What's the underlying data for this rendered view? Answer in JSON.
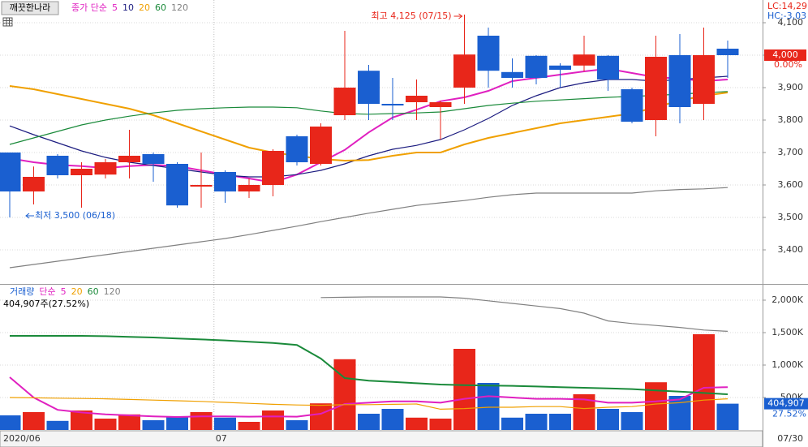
{
  "chart_data": [
    {
      "type": "candlestick",
      "title": "깨끗한나라",
      "ma_label": "종가 단순",
      "open": [
        3700,
        3580,
        3690,
        3630,
        3632,
        3670,
        3695,
        3665,
        3595,
        3640,
        3580,
        3600,
        3750,
        3665,
        3815,
        3952,
        3850,
        3855,
        3840,
        3900,
        4060,
        3948,
        3998,
        3968,
        3968,
        3998,
        3895,
        3800,
        4000,
        3850,
        4020
      ],
      "high": [
        3700,
        3657,
        3695,
        3670,
        3680,
        3770,
        3700,
        3670,
        3700,
        3645,
        3620,
        3710,
        3755,
        3790,
        4075,
        3970,
        3930,
        3925,
        3860,
        4125,
        4085,
        3990,
        4000,
        3975,
        4060,
        4000,
        3900,
        4060,
        4065,
        4085,
        4045
      ],
      "low": [
        3500,
        3540,
        3620,
        3530,
        3620,
        3620,
        3610,
        3530,
        3530,
        3545,
        3560,
        3565,
        3660,
        3660,
        3800,
        3800,
        3800,
        3800,
        3740,
        3850,
        3900,
        3900,
        3910,
        3900,
        3950,
        3890,
        3790,
        3750,
        3790,
        3800,
        3930
      ],
      "close": [
        3580,
        3625,
        3630,
        3650,
        3670,
        3690,
        3665,
        3537,
        3600,
        3580,
        3600,
        3705,
        3670,
        3780,
        3900,
        3850,
        3845,
        3875,
        3855,
        4002,
        3952,
        3930,
        3930,
        3955,
        4002,
        3925,
        3795,
        3995,
        3840,
        4000,
        4000
      ],
      "up_color": "#e8261a",
      "down_color": "#1a5fd0",
      "series": [
        {
          "name": "5",
          "color": "#e020c0",
          "values": [
            3682,
            3670,
            3662,
            3658,
            3652,
            3658,
            3662,
            3658,
            3645,
            3632,
            3620,
            3608,
            3632,
            3670,
            3708,
            3762,
            3808,
            3832,
            3858,
            3870,
            3890,
            3920,
            3930,
            3940,
            3950,
            3958,
            3945,
            3932,
            3928,
            3920,
            3925
          ]
        },
        {
          "name": "10",
          "color": "#1c1c80",
          "values": [
            3782,
            3755,
            3730,
            3705,
            3685,
            3670,
            3660,
            3650,
            3640,
            3630,
            3625,
            3625,
            3632,
            3645,
            3665,
            3690,
            3710,
            3722,
            3740,
            3770,
            3805,
            3845,
            3875,
            3900,
            3915,
            3925,
            3925,
            3920,
            3925,
            3930,
            3935
          ]
        },
        {
          "name": "20",
          "color": "#f0a000",
          "values": [
            3905,
            3895,
            3880,
            3865,
            3850,
            3835,
            3815,
            3790,
            3765,
            3740,
            3715,
            3700,
            3690,
            3680,
            3675,
            3677,
            3690,
            3700,
            3700,
            3725,
            3745,
            3760,
            3775,
            3790,
            3800,
            3810,
            3820,
            3840,
            3860,
            3875,
            3885
          ]
        },
        {
          "name": "60",
          "color": "#1a8a3a",
          "values": [
            3725,
            3745,
            3765,
            3785,
            3800,
            3812,
            3822,
            3830,
            3835,
            3838,
            3840,
            3840,
            3838,
            3828,
            3820,
            3818,
            3820,
            3822,
            3825,
            3835,
            3845,
            3852,
            3858,
            3862,
            3866,
            3870,
            3873,
            3876,
            3880,
            3884,
            3888
          ]
        },
        {
          "name": "120",
          "color": "#808080",
          "values": [
            3345,
            3355,
            3365,
            3375,
            3385,
            3395,
            3405,
            3415,
            3425,
            3435,
            3447,
            3460,
            3473,
            3487,
            3500,
            3513,
            3525,
            3537,
            3545,
            3552,
            3562,
            3570,
            3575,
            3575,
            3575,
            3575,
            3575,
            3582,
            3586,
            3588,
            3592
          ]
        }
      ],
      "ylim": [
        3295,
        4170
      ],
      "yticks": [
        {
          "value": 3400,
          "label": "3,400"
        },
        {
          "value": 3500,
          "label": "3,500"
        },
        {
          "value": 3600,
          "label": "3,600"
        },
        {
          "value": 3700,
          "label": "3,700"
        },
        {
          "value": 3800,
          "label": "3,800"
        },
        {
          "value": 3900,
          "label": "3,900"
        },
        {
          "value": 4000,
          "label": "4,000"
        },
        {
          "value": 4100,
          "label": "4,100"
        }
      ],
      "xticks": [
        {
          "value": 0,
          "label": "2020/06"
        },
        {
          "value": 8.5,
          "label": "07"
        },
        {
          "value": 30,
          "label": "07/30"
        }
      ],
      "high_label": "최고 4,125 (07/15)",
      "low_label": "최저 3,500 (06/18)",
      "last_value": {
        "value": 4000,
        "label": "4,000"
      },
      "change": "0.00%",
      "lc": "LC:14,29",
      "hc": "HC:-3,03",
      "grid": true
    },
    {
      "type": "bar",
      "title": "거래량",
      "ma_label": "단순",
      "values": [
        225,
        275,
        140,
        300,
        175,
        240,
        150,
        200,
        275,
        190,
        125,
        300,
        150,
        410,
        1090,
        250,
        325,
        190,
        175,
        1250,
        725,
        190,
        250,
        250,
        550,
        325,
        275,
        735,
        525,
        1475,
        404.907
      ],
      "series": [
        {
          "name": "5",
          "color": "#e020c0",
          "values": [
            812,
            500,
            310,
            270,
            240,
            225,
            210,
            200,
            210,
            210,
            205,
            210,
            205,
            250,
            400,
            420,
            440,
            440,
            420,
            480,
            520,
            500,
            480,
            480,
            470,
            420,
            420,
            440,
            470,
            650,
            660
          ]
        },
        {
          "name": "20",
          "color": "#f0a000",
          "values": [
            500,
            495,
            490,
            485,
            480,
            470,
            460,
            450,
            440,
            425,
            410,
            395,
            385,
            380,
            390,
            390,
            395,
            400,
            320,
            330,
            350,
            350,
            360,
            360,
            330,
            350,
            360,
            400,
            420,
            460,
            480
          ]
        },
        {
          "name": "60",
          "color": "#1a8a3a",
          "values": [
            1450,
            1450,
            1450,
            1450,
            1445,
            1435,
            1425,
            1410,
            1395,
            1380,
            1360,
            1340,
            1310,
            1100,
            800,
            760,
            740,
            720,
            700,
            690,
            685,
            680,
            670,
            660,
            650,
            640,
            630,
            610,
            590,
            570,
            550
          ]
        },
        {
          "name": "120",
          "color": "#808080",
          "values": [
            null,
            null,
            null,
            null,
            null,
            null,
            null,
            null,
            null,
            null,
            null,
            null,
            null,
            2040,
            2045,
            2050,
            2050,
            2050,
            2050,
            2030,
            1990,
            1950,
            1910,
            1870,
            1800,
            1680,
            1640,
            1610,
            1580,
            1540,
            1520
          ]
        }
      ],
      "ylim": [
        0,
        2225
      ],
      "yticks": [
        {
          "value": 500,
          "label": "500K"
        },
        {
          "value": 1000,
          "label": "1,000K"
        },
        {
          "value": 1500,
          "label": "1,500K"
        },
        {
          "value": 2000,
          "label": "2,000K"
        }
      ],
      "info": "404,907주(27.52%)",
      "last_value": {
        "value": 404.907,
        "label": "404,907"
      },
      "ratio": "27.52%",
      "grid": true
    }
  ]
}
